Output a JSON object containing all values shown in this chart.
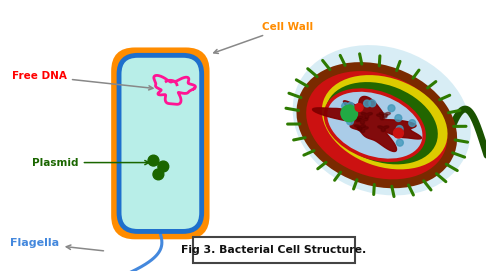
{
  "title": "Fig 3. Bacterial Cell Structure.",
  "background_color": "#ffffff",
  "cell_wall_color": "#FF8C00",
  "cell_membrane_color": "#1E6FCC",
  "cytoplasm_color": "#B8EEE8",
  "free_dna_color": "#FF1493",
  "plasmid_color": "#1A6600",
  "flagella_color": "#4488DD",
  "label_free_dna": "Free DNA",
  "label_plasmid": "Plasmid",
  "label_flagella": "Flagella",
  "label_cell_wall": "Cell Wall",
  "annotation_color": "#888888"
}
